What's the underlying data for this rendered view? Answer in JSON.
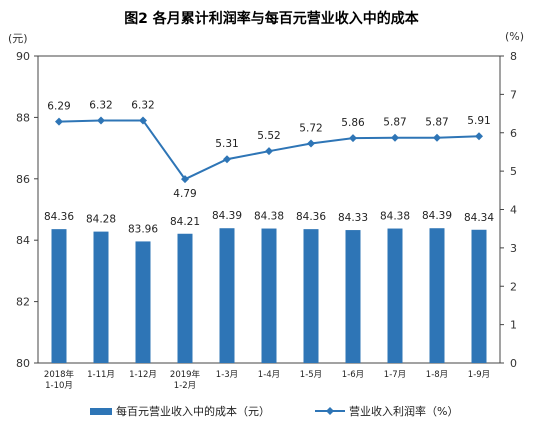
{
  "chart_data": {
    "type": "bar+line",
    "title": "图2  各月累计利润率与每百元营业收入中的成本",
    "left_axis_label": "(元)",
    "right_axis_label": "(%)",
    "categories": [
      [
        "2018年",
        "1-10月"
      ],
      [
        "1-11月"
      ],
      [
        "1-12月"
      ],
      [
        "2019年",
        "1-2月"
      ],
      [
        "1-3月"
      ],
      [
        "1-4月"
      ],
      [
        "1-5月"
      ],
      [
        "1-6月"
      ],
      [
        "1-7月"
      ],
      [
        "1-8月"
      ],
      [
        "1-9月"
      ]
    ],
    "series": [
      {
        "name": "每百元营业收入中的成本（元）",
        "type": "bar",
        "axis": "left",
        "color": "#2e75b6",
        "values": [
          84.36,
          84.28,
          83.96,
          84.21,
          84.39,
          84.38,
          84.36,
          84.33,
          84.38,
          84.39,
          84.34
        ],
        "labels": [
          "84.36",
          "84.28",
          "83.96",
          "84.21",
          "84.39",
          "84.38",
          "84.36",
          "84.33",
          "84.38",
          "84.39",
          "84.34"
        ]
      },
      {
        "name": "营业收入利润率（%）",
        "type": "line",
        "axis": "right",
        "color": "#2e75b6",
        "values": [
          6.29,
          6.32,
          6.32,
          4.79,
          5.31,
          5.52,
          5.72,
          5.86,
          5.87,
          5.87,
          5.91
        ],
        "labels": [
          "6.29",
          "6.32",
          "6.32",
          "4.79",
          "5.31",
          "5.52",
          "5.72",
          "5.86",
          "5.87",
          "5.87",
          "5.91"
        ]
      }
    ],
    "left_ylim": [
      80,
      90
    ],
    "left_ticks": [
      "80",
      "82",
      "84",
      "86",
      "88",
      "90"
    ],
    "right_ylim": [
      0,
      8
    ],
    "right_ticks": [
      "0",
      "1",
      "2",
      "3",
      "4",
      "5",
      "6",
      "7",
      "8"
    ],
    "legend_position": "bottom",
    "grid": false
  }
}
